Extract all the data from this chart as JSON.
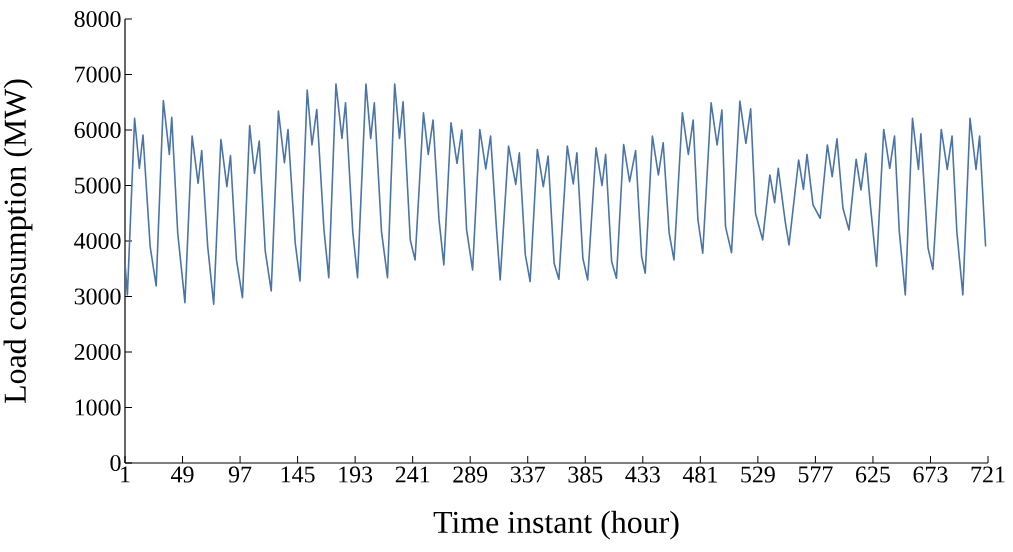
{
  "chart_data": {
    "type": "line",
    "xlabel": "Time instant (hour)",
    "ylabel": "Load consumption (MW)",
    "color": "#4a74a8",
    "x": [
      1,
      3,
      9,
      13,
      16,
      22,
      27,
      33,
      38,
      40,
      45,
      51,
      57,
      62,
      65,
      70,
      75,
      81,
      86,
      89,
      94,
      99,
      105,
      109,
      113,
      118,
      123,
      129,
      134,
      137,
      143,
      147,
      153,
      157,
      161,
      167,
      171,
      177,
      182,
      185,
      191,
      195,
      202,
      206,
      209,
      215,
      220,
      226,
      230,
      233,
      239,
      243,
      250,
      254,
      258,
      263,
      267,
      273,
      278,
      282,
      286,
      291,
      297,
      302,
      306,
      311,
      314,
      321,
      327,
      330,
      335,
      339,
      345,
      350,
      354,
      359,
      363,
      370,
      375,
      378,
      383,
      387,
      394,
      399,
      402,
      407,
      411,
      417,
      422,
      427,
      432,
      435,
      441,
      446,
      450,
      455,
      459,
      466,
      471,
      475,
      479,
      483,
      490,
      495,
      499,
      502,
      507,
      514,
      519,
      523,
      527,
      530,
      533,
      539,
      543,
      546,
      552,
      555,
      563,
      567,
      570,
      575,
      581,
      587,
      591,
      595,
      600,
      605,
      611,
      615,
      619,
      623,
      628,
      634,
      639,
      643,
      647,
      652,
      658,
      663,
      665,
      671,
      675,
      682,
      687,
      691,
      695,
      700,
      706,
      711,
      714,
      719
    ],
    "values": [
      3600,
      3030,
      6210,
      5310,
      5910,
      3900,
      3190,
      6530,
      5560,
      6230,
      4140,
      2890,
      5890,
      5040,
      5630,
      3900,
      2860,
      5830,
      4980,
      5540,
      3660,
      2980,
      6080,
      5220,
      5800,
      3820,
      3100,
      6340,
      5410,
      6010,
      3970,
      3280,
      6720,
      5730,
      6370,
      4200,
      3340,
      6830,
      5850,
      6490,
      4170,
      3340,
      6830,
      5850,
      6490,
      4170,
      3340,
      6830,
      5850,
      6510,
      4020,
      3660,
      6310,
      5560,
      6180,
      4380,
      3570,
      6130,
      5400,
      6000,
      4200,
      3480,
      6010,
      5300,
      5890,
      4200,
      3300,
      5710,
      5020,
      5590,
      3750,
      3270,
      5650,
      4980,
      5530,
      3600,
      3310,
      5710,
      5030,
      5590,
      3690,
      3300,
      5680,
      5000,
      5560,
      3630,
      3330,
      5740,
      5070,
      5630,
      3720,
      3420,
      5890,
      5190,
      5770,
      4140,
      3660,
      6310,
      5560,
      6180,
      4380,
      3780,
      6490,
      5730,
      6360,
      4260,
      3790,
      6520,
      5760,
      6380,
      4500,
      4260,
      4020,
      5190,
      4690,
      5310,
      4320,
      3930,
      5460,
      4930,
      5560,
      4650,
      4410,
      5730,
      5160,
      5840,
      4590,
      4200,
      5470,
      4920,
      5580,
      4620,
      3540,
      6010,
      5310,
      5890,
      4170,
      3030,
      6210,
      5290,
      5930,
      3870,
      3490,
      6010,
      5290,
      5890,
      4170,
      3030,
      6210,
      5290,
      5890,
      3900
    ],
    "xlim": [
      1,
      721
    ],
    "ylim": [
      0,
      8000
    ],
    "xticks": [
      1,
      49,
      97,
      145,
      193,
      241,
      289,
      337,
      385,
      433,
      481,
      529,
      577,
      625,
      673,
      721
    ],
    "yticks": [
      0,
      1000,
      2000,
      3000,
      4000,
      5000,
      6000,
      7000,
      8000
    ]
  }
}
